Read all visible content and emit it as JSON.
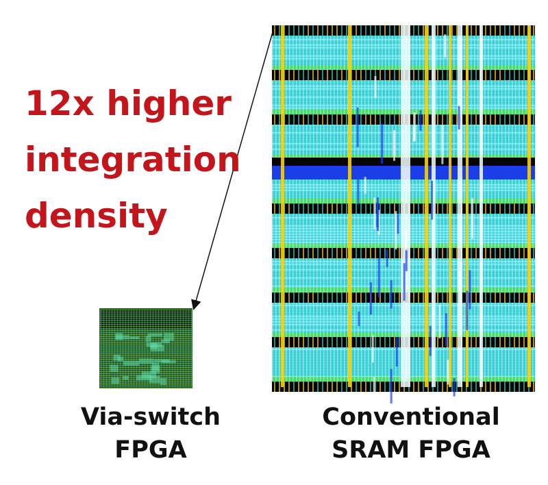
{
  "headline": {
    "lines": [
      "12x higher",
      "integration",
      "density"
    ],
    "color": "#c3151c"
  },
  "via_switch": {
    "label_lines": [
      "Via-switch",
      "FPGA"
    ]
  },
  "conventional": {
    "label_lines": [
      "Conventional",
      "SRAM FPGA"
    ]
  },
  "colors": {
    "cyan": "#3fd3e0",
    "teal": "#39c9b0",
    "blue": "#1c3ee8",
    "yellow": "#f2d21a",
    "green": "#4fe040",
    "black": "#050505"
  }
}
